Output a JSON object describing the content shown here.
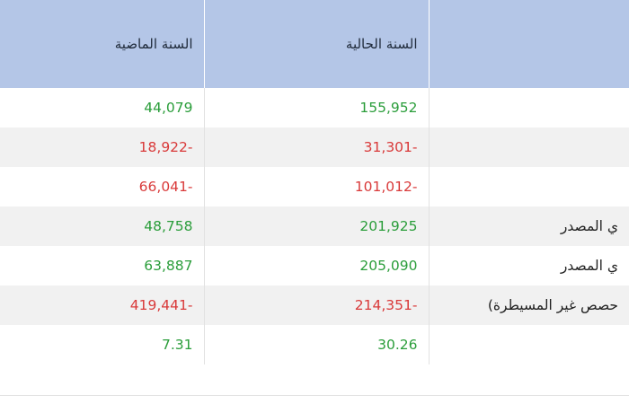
{
  "header": {
    "label_col": "",
    "current_year": "السنة الحالية",
    "previous_year": "السنة الماضية"
  },
  "rows": [
    {
      "label": "",
      "current": "155,952",
      "previous": "44,079",
      "current_sign": "pos",
      "previous_sign": "pos"
    },
    {
      "label": "",
      "current": "31,301-",
      "previous": "18,922-",
      "current_sign": "neg",
      "previous_sign": "neg"
    },
    {
      "label": "",
      "current": "101,012-",
      "previous": "66,041-",
      "current_sign": "neg",
      "previous_sign": "neg"
    },
    {
      "label": "ي المصدر",
      "current": "201,925",
      "previous": "48,758",
      "current_sign": "pos",
      "previous_sign": "pos"
    },
    {
      "label": "ي المصدر",
      "current": "205,090",
      "previous": "63,887",
      "current_sign": "pos",
      "previous_sign": "pos"
    },
    {
      "label": "حصص غير المسيطرة)",
      "current": "214,351-",
      "previous": "419,441-",
      "current_sign": "neg",
      "previous_sign": "neg"
    },
    {
      "label": "",
      "current": "30.26",
      "previous": "7.31",
      "current_sign": "pos",
      "previous_sign": "pos"
    }
  ],
  "colors": {
    "header_bg": "#b4c6e7",
    "positive": "#2a9d3a",
    "negative": "#d93a3a",
    "alt_row": "#f1f1f1"
  }
}
